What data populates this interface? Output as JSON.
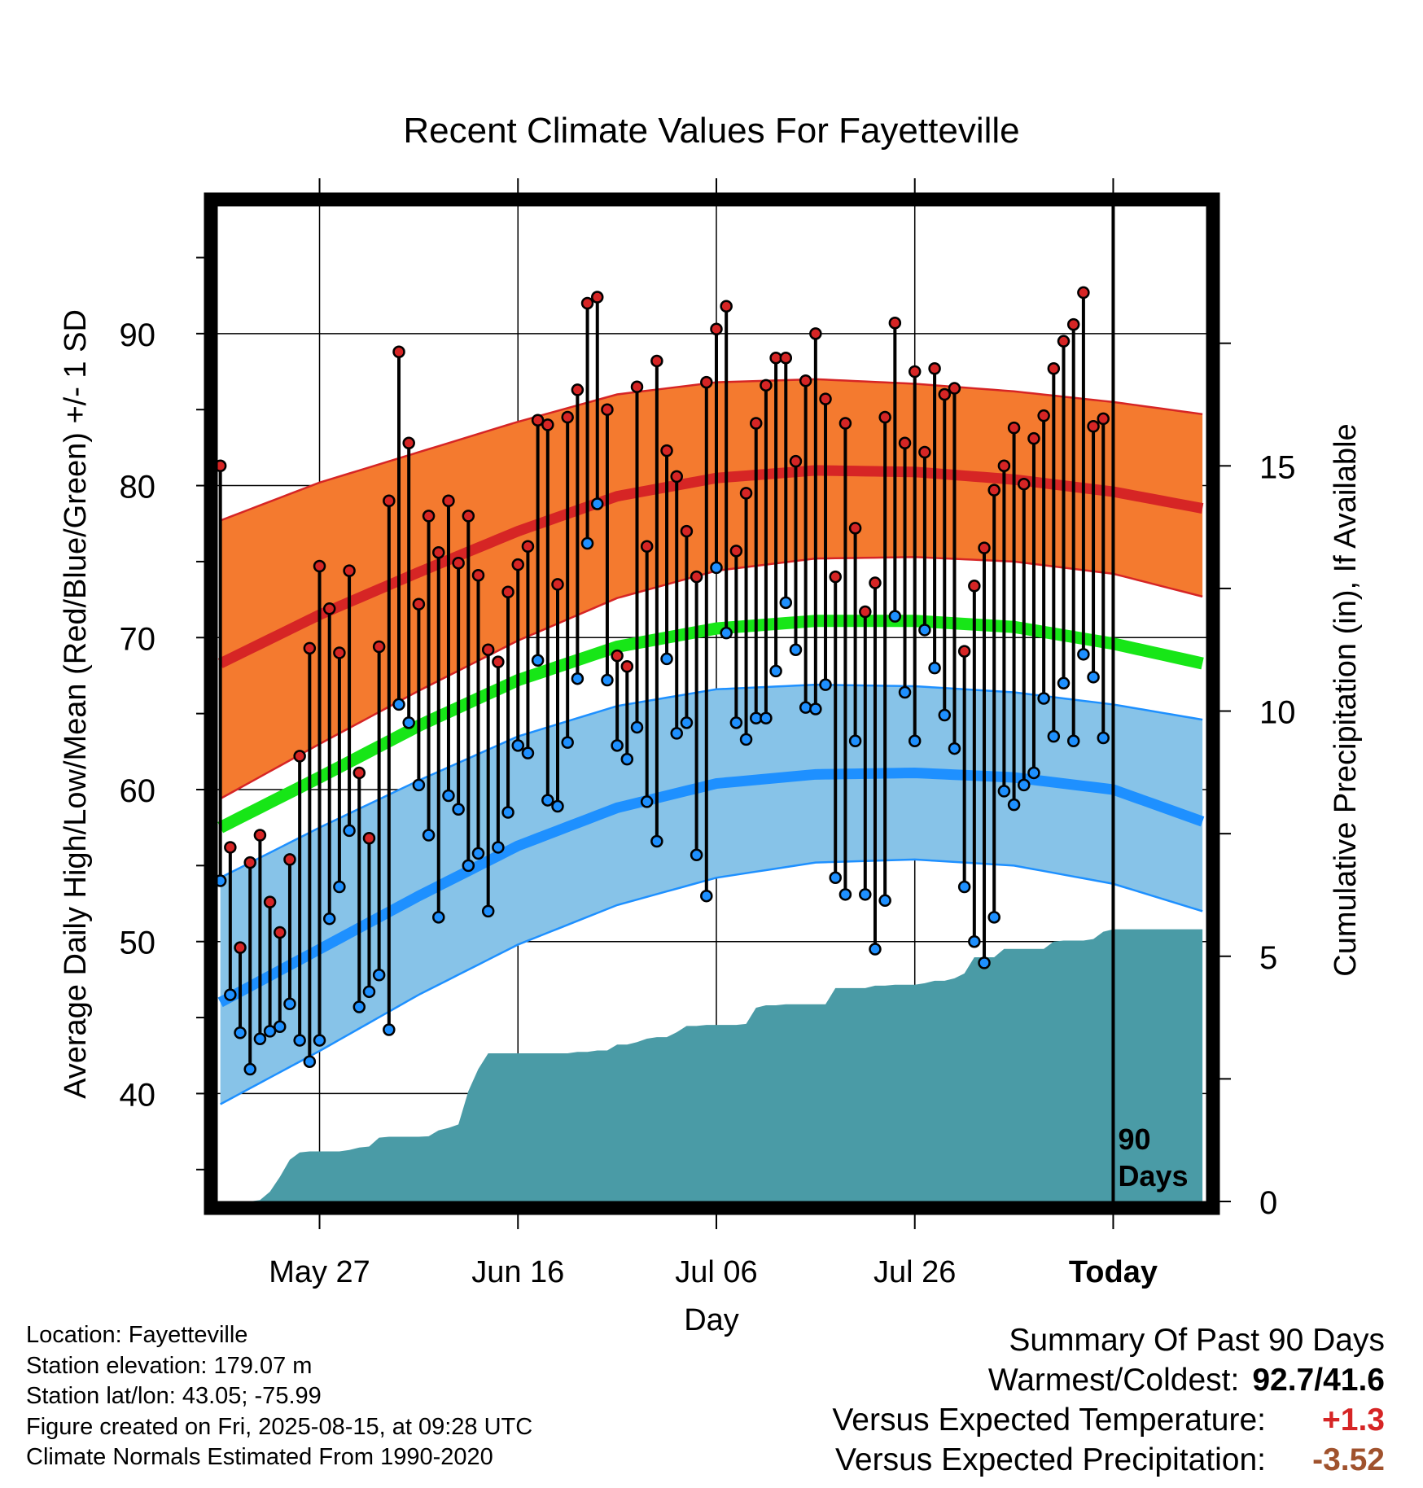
{
  "chart_data": {
    "type": "line",
    "title": "Recent Climate Values For Fayetteville",
    "xlabel": "Day",
    "ylabel": "Average Daily High/Low/Mean (Red/Blue/Green) +/- 1 SD",
    "ylabel_right": "Cumulative Precipitation (in), If Available",
    "x_ticks": [
      {
        "day": 10,
        "label": "May 27"
      },
      {
        "day": 30,
        "label": "Jun 16"
      },
      {
        "day": 50,
        "label": "Jul 06"
      },
      {
        "day": 70,
        "label": "Jul 26"
      },
      {
        "day": 90,
        "label": "Today"
      }
    ],
    "xlim": [
      -0.3,
      99.4
    ],
    "ylim": [
      32.9,
      98.4
    ],
    "y_ticks": [
      40,
      50,
      60,
      70,
      80,
      90
    ],
    "y2lim": [
      0,
      20.3
    ],
    "y2_ticks": [
      0,
      5,
      10,
      15
    ],
    "today_marker_label": "90 Days",
    "colors": {
      "high_band": "#f47a2f",
      "high_line": "#d62525",
      "low_band": "#87c3e8",
      "low_line": "#1e90ff",
      "mean_line": "#17e617",
      "precip": "#4a9ba6"
    },
    "normals": {
      "day": [
        0,
        10,
        20,
        30,
        40,
        50,
        60,
        70,
        80,
        90,
        99
      ],
      "high_mean": [
        68.3,
        71.5,
        74.3,
        77.0,
        79.3,
        80.5,
        81.0,
        80.9,
        80.4,
        79.6,
        78.5
      ],
      "high_upper": [
        77.7,
        80.2,
        82.2,
        84.2,
        86.0,
        86.8,
        87.0,
        86.7,
        86.2,
        85.5,
        84.7
      ],
      "high_lower": [
        59.4,
        63.0,
        66.5,
        69.8,
        72.6,
        74.4,
        75.2,
        75.3,
        75.0,
        74.2,
        72.7
      ],
      "low_mean": [
        46.0,
        49.5,
        53.0,
        56.3,
        58.8,
        60.4,
        61.0,
        61.1,
        60.8,
        60.0,
        57.9
      ],
      "low_upper": [
        54.2,
        57.5,
        60.6,
        63.5,
        65.5,
        66.6,
        66.9,
        66.8,
        66.4,
        65.6,
        64.6
      ],
      "low_lower": [
        39.3,
        42.8,
        46.5,
        49.8,
        52.4,
        54.2,
        55.2,
        55.4,
        55.0,
        53.8,
        52.0
      ],
      "mean": [
        57.5,
        60.8,
        64.2,
        67.2,
        69.4,
        70.6,
        71.1,
        71.1,
        70.7,
        69.6,
        68.3
      ]
    },
    "series": [
      {
        "name": "High",
        "values": [
          81.3,
          56.2,
          49.6,
          55.2,
          57.0,
          52.6,
          50.6,
          55.4,
          62.2,
          69.3,
          74.7,
          71.9,
          69.0,
          74.4,
          61.1,
          56.8,
          69.4,
          79.0,
          88.8,
          82.8,
          72.2,
          78.0,
          75.6,
          79.0,
          74.9,
          78.0,
          74.1,
          69.2,
          68.4,
          73.0,
          74.8,
          76.0,
          84.3,
          84.0,
          73.5,
          84.5,
          86.3,
          92.0,
          92.4,
          85.0,
          68.8,
          68.1,
          86.5,
          76.0,
          88.2,
          82.3,
          80.6,
          77.0,
          74.0,
          86.8,
          90.3,
          91.8,
          75.7,
          79.5,
          84.1,
          86.6,
          88.4,
          88.4,
          81.6,
          86.9,
          90.0,
          85.7,
          74.0,
          84.1,
          77.2,
          71.7,
          73.6,
          84.5,
          90.7,
          82.8,
          87.5,
          82.2,
          87.7,
          86.0,
          86.4,
          69.1,
          73.4,
          75.9,
          79.7,
          81.3,
          83.8,
          80.1,
          83.1,
          84.6,
          87.7,
          89.5,
          90.6,
          92.7,
          83.9,
          84.4
        ]
      },
      {
        "name": "Low",
        "values": [
          54.0,
          46.5,
          44.0,
          41.6,
          43.6,
          44.1,
          44.4,
          45.9,
          43.5,
          42.1,
          43.5,
          51.5,
          53.6,
          57.3,
          45.7,
          46.7,
          47.8,
          44.2,
          65.6,
          64.4,
          60.3,
          57.0,
          51.6,
          59.6,
          58.7,
          55.0,
          55.8,
          52.0,
          56.2,
          58.5,
          62.9,
          62.4,
          68.5,
          59.3,
          58.9,
          63.1,
          67.3,
          76.2,
          78.8,
          67.2,
          62.9,
          62.0,
          64.1,
          59.2,
          56.6,
          68.6,
          63.7,
          64.4,
          55.7,
          53.0,
          74.6,
          70.3,
          64.4,
          63.3,
          64.7,
          64.7,
          67.8,
          72.3,
          69.2,
          65.4,
          65.3,
          66.9,
          54.2,
          53.1,
          63.2,
          53.1,
          49.5,
          52.7,
          71.4,
          66.4,
          63.2,
          70.5,
          68.0,
          64.9,
          62.7,
          53.6,
          50.0,
          48.6,
          51.6,
          59.9,
          59.0,
          60.3,
          61.1,
          66.0,
          63.5,
          67.0,
          63.2,
          68.9,
          67.4,
          63.4
        ]
      },
      {
        "name": "Precipitation",
        "values": [
          0.0,
          0.0,
          0.0,
          0.0,
          0.03,
          0.2,
          0.5,
          0.85,
          1.0,
          1.02,
          1.02,
          1.02,
          1.02,
          1.05,
          1.1,
          1.12,
          1.3,
          1.32,
          1.32,
          1.32,
          1.32,
          1.33,
          1.45,
          1.5,
          1.57,
          2.25,
          2.7,
          3.02,
          3.02,
          3.02,
          3.02,
          3.02,
          3.02,
          3.02,
          3.02,
          3.02,
          3.05,
          3.05,
          3.08,
          3.08,
          3.2,
          3.2,
          3.25,
          3.32,
          3.35,
          3.35,
          3.45,
          3.58,
          3.58,
          3.6,
          3.6,
          3.6,
          3.6,
          3.62,
          3.95,
          4.0,
          4.0,
          4.02,
          4.02,
          4.02,
          4.02,
          4.02,
          4.35,
          4.35,
          4.35,
          4.35,
          4.4,
          4.4,
          4.42,
          4.42,
          4.42,
          4.45,
          4.5,
          4.5,
          4.55,
          4.65,
          4.98,
          4.98,
          4.98,
          5.15,
          5.15,
          5.15,
          5.15,
          5.15,
          5.3,
          5.32,
          5.32,
          5.32,
          5.35,
          5.5,
          5.55,
          5.55,
          5.55,
          5.55,
          5.55,
          5.55,
          5.55,
          5.55,
          5.55,
          5.55
        ]
      }
    ]
  },
  "location": "Location: Fayetteville",
  "elevation": "Station elevation: 179.07 m",
  "latlon": "Station lat/lon: 43.05; -75.99",
  "created": "Figure created on Fri, 2025-08-15, at 09:28 UTC",
  "normals_note": "Climate Normals Estimated From 1990-2020",
  "summary": {
    "title": "Summary Of Past 90 Days",
    "warmest_label": "Warmest/Coldest:",
    "warmest_value": "92.7/41.6",
    "temp_label": "Versus Expected Temperature:",
    "temp_value": "+1.3",
    "temp_color": "#d62525",
    "precip_label": "Versus Expected Precipitation:",
    "precip_value": "-3.52",
    "precip_color": "#a0522d"
  }
}
